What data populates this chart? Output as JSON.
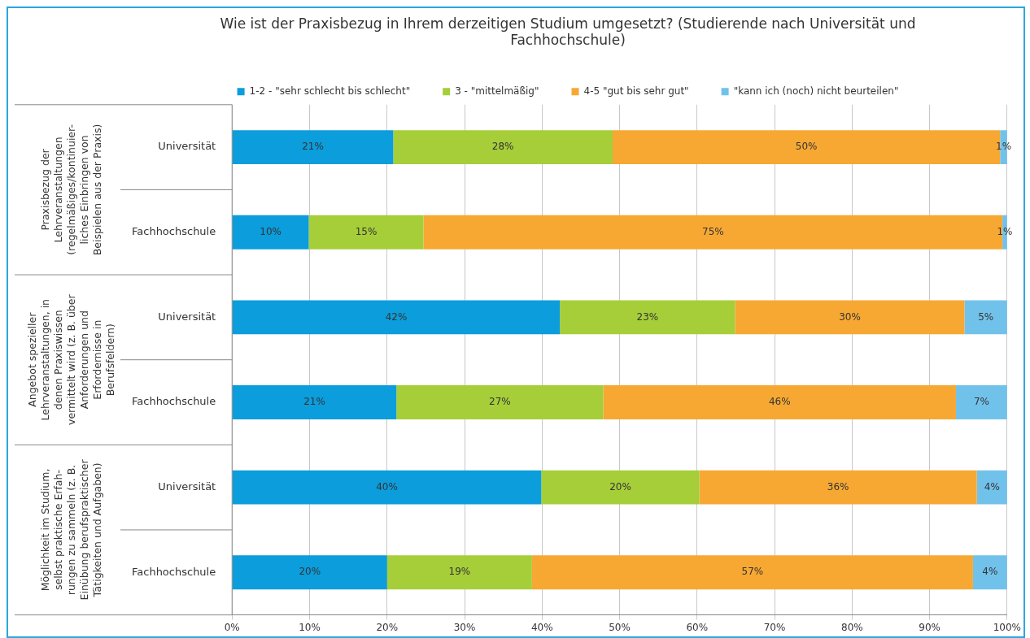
{
  "chart_data": {
    "type": "bar",
    "orientation": "horizontal",
    "stacked": true,
    "title": "Wie ist der Praxisbezug in Ihrem derzeitigen Studium umgesetzt? (Studierende nach Universität und Fachhochschule)",
    "categories": [
      "Universität",
      "Fachhochschule",
      "Universität",
      "Fachhochschule",
      "Universität",
      "Fachhochschule"
    ],
    "series": [
      {
        "name": "1-2 - \"sehr schlecht bis schlecht\"",
        "color": "#0b9ddc",
        "values": [
          20.8,
          9.9,
          42.3,
          21.2,
          39.9,
          20.0
        ],
        "value_labels": [
          "21%",
          "10%",
          "42%",
          "21%",
          "40%",
          "20%"
        ]
      },
      {
        "name": "3 - \"mittelmäßig\"",
        "color": "#a6ce39",
        "values": [
          28.3,
          14.8,
          22.6,
          26.7,
          20.4,
          18.7
        ],
        "value_labels": [
          "28%",
          "15%",
          "23%",
          "27%",
          "20%",
          "19%"
        ]
      },
      {
        "name": "4-5 \"gut bis sehr gut\"",
        "color": "#f7a833",
        "values": [
          50.0,
          74.7,
          29.6,
          45.5,
          35.8,
          56.9
        ],
        "value_labels": [
          "50%",
          "75%",
          "30%",
          "46%",
          "36%",
          "57%"
        ]
      },
      {
        "name": "\"kann ich (noch) nicht beurteilen\"",
        "color": "#71c2eb",
        "values": [
          0.9,
          0.6,
          5.5,
          6.6,
          3.9,
          4.4
        ],
        "value_labels": [
          "1%",
          "1%",
          "5%",
          "7%",
          "4%",
          "4%"
        ]
      }
    ],
    "xlim": [
      0,
      100
    ],
    "xticks": [
      {
        "value": 0,
        "label": "0%"
      },
      {
        "value": 10,
        "label": "10%"
      },
      {
        "value": 20,
        "label": "20%"
      },
      {
        "value": 30,
        "label": "30%"
      },
      {
        "value": 40,
        "label": "40%"
      },
      {
        "value": 50,
        "label": "50%"
      },
      {
        "value": 60,
        "label": "60%"
      },
      {
        "value": 70,
        "label": "70%"
      },
      {
        "value": 80,
        "label": "80%"
      },
      {
        "value": 90,
        "label": "90%"
      },
      {
        "value": 100,
        "label": "100%"
      }
    ],
    "grid": "x",
    "legend": "top",
    "annotations": [
      "Praxisbezug der\nLehrveranstaltungen\n(regelmäßiges/kontinuier-\nliches Einbringen von\nBeispielen aus der Praxis)",
      "Angebot spezieller\nLehrveranstaltungen, in\ndenen Praxiswissen\nvermittelt wird (z. B. über\nAnforderungen und\nErfordernisse in\nBerufsfeldern)",
      "Möglichkeit im Studium,\nselbst praktische Erfah-\nrungen zu sammeln (z. B.\nEinübung berufspraktischer\nTätigkeiten und Aufgaben)"
    ]
  }
}
